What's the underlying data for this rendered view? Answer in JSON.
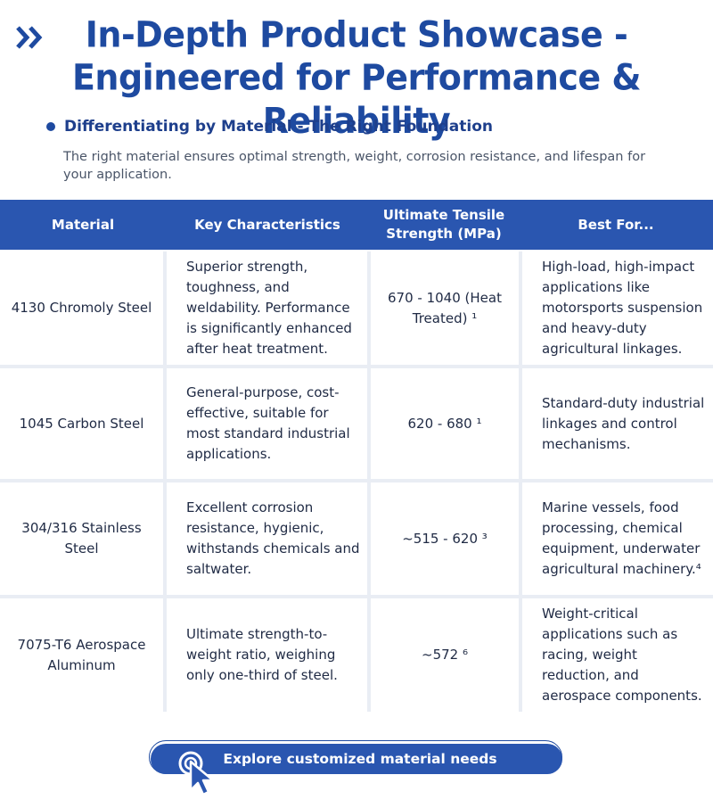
{
  "header": {
    "title_line1": "In-Depth Product Showcase -",
    "title_line2": "Engineered for Performance & Reliability",
    "icon": "double-chevron-right-icon"
  },
  "section": {
    "heading": "Differentiating by Material - The Right Foundation",
    "description": "The right material ensures optimal strength, weight, corrosion resistance, and lifespan for your application."
  },
  "table": {
    "headers": [
      "Material",
      "Key Characteristics",
      "Ultimate Tensile Strength (MPa)",
      "Best For..."
    ],
    "rows": [
      {
        "material": "4130 Chromoly Steel",
        "characteristics": "Superior strength, toughness, and weldability. Performance is significantly enhanced after heat treatment.",
        "strength": "670 - 1040 (Heat Treated) ¹",
        "best_for": "High-load, high-impact applications like motorsports suspension and heavy-duty agricultural linkages."
      },
      {
        "material": "1045 Carbon Steel",
        "characteristics": "General-purpose, cost-effective, suitable for most standard industrial applications.",
        "strength": "620 - 680 ¹",
        "best_for": "Standard-duty industrial linkages and control mechanisms."
      },
      {
        "material": "304/316 Stainless Steel",
        "characteristics": "Excellent corrosion resistance, hygienic, withstands chemicals and saltwater.",
        "strength": "~515 - 620 ³",
        "best_for": "Marine vessels, food processing, chemical equipment, underwater agricultural machinery.⁴"
      },
      {
        "material": "7075-T6 Aerospace Aluminum",
        "characteristics": "Ultimate strength-to-weight ratio, weighing only one-third of steel.",
        "strength": "~572 ⁶",
        "best_for": "Weight-critical applications such as racing, weight reduction, and aerospace components."
      }
    ]
  },
  "cta": {
    "label": "Explore customized material needs",
    "icon": "pointer-click-icon"
  },
  "colors": {
    "brand": "#1e4aa0",
    "header_bg": "#2a56b0",
    "table_gap": "#e9edf4"
  }
}
